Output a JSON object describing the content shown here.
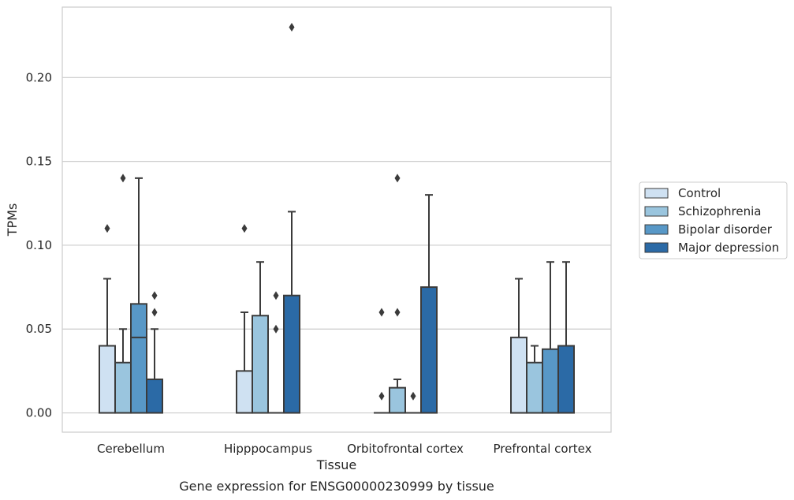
{
  "chart_data": {
    "type": "boxplot",
    "title": "Gene expression for ENSG00000230999 by tissue",
    "xlabel": "Tissue",
    "ylabel": "TPMs",
    "ylim": [
      -0.0115,
      0.242
    ],
    "yticks": [
      {
        "value": 0.0,
        "label": "0.00"
      },
      {
        "value": 0.05,
        "label": "0.05"
      },
      {
        "value": 0.1,
        "label": "0.10"
      },
      {
        "value": 0.15,
        "label": "0.15"
      },
      {
        "value": 0.2,
        "label": "0.20"
      }
    ],
    "grid": "horizontal",
    "legend_position": "right",
    "categories": [
      "Cerebellum",
      "Hipppocampus",
      "Orbitofrontal cortex",
      "Prefrontal cortex"
    ],
    "series": [
      {
        "name": "Control",
        "color": "#cfe1f2",
        "boxes": [
          {
            "q1": 0.0,
            "median": 0.0,
            "q3": 0.04,
            "whisker_low": 0.0,
            "whisker_high": 0.08,
            "outliers": [
              0.11
            ]
          },
          {
            "q1": 0.0,
            "median": 0.0,
            "q3": 0.025,
            "whisker_low": 0.0,
            "whisker_high": 0.06,
            "outliers": [
              0.11
            ]
          },
          {
            "q1": 0.0,
            "median": 0.0,
            "q3": 0.0,
            "whisker_low": 0.0,
            "whisker_high": 0.0,
            "outliers": [
              0.01,
              0.06
            ]
          },
          {
            "q1": 0.0,
            "median": 0.0,
            "q3": 0.045,
            "whisker_low": 0.0,
            "whisker_high": 0.08,
            "outliers": []
          }
        ]
      },
      {
        "name": "Schizophrenia",
        "color": "#9ac5de",
        "boxes": [
          {
            "q1": 0.0,
            "median": 0.0,
            "q3": 0.03,
            "whisker_low": 0.0,
            "whisker_high": 0.05,
            "outliers": [
              0.14
            ]
          },
          {
            "q1": 0.0,
            "median": 0.0,
            "q3": 0.058,
            "whisker_low": 0.0,
            "whisker_high": 0.09,
            "outliers": []
          },
          {
            "q1": 0.0,
            "median": 0.0,
            "q3": 0.015,
            "whisker_low": 0.0,
            "whisker_high": 0.02,
            "outliers": [
              0.06,
              0.14
            ]
          },
          {
            "q1": 0.0,
            "median": 0.0,
            "q3": 0.03,
            "whisker_low": 0.0,
            "whisker_high": 0.04,
            "outliers": []
          }
        ]
      },
      {
        "name": "Bipolar disorder",
        "color": "#5898c7",
        "boxes": [
          {
            "q1": 0.0,
            "median": 0.045,
            "q3": 0.065,
            "whisker_low": 0.0,
            "whisker_high": 0.14,
            "outliers": []
          },
          {
            "q1": 0.0,
            "median": 0.0,
            "q3": 0.0,
            "whisker_low": 0.0,
            "whisker_high": 0.0,
            "outliers": [
              0.05,
              0.07
            ]
          },
          {
            "q1": 0.0,
            "median": 0.0,
            "q3": 0.0,
            "whisker_low": 0.0,
            "whisker_high": 0.0,
            "outliers": [
              0.01
            ]
          },
          {
            "q1": 0.0,
            "median": 0.0,
            "q3": 0.038,
            "whisker_low": 0.0,
            "whisker_high": 0.09,
            "outliers": []
          }
        ]
      },
      {
        "name": "Major depression",
        "color": "#2b6aa6",
        "boxes": [
          {
            "q1": 0.0,
            "median": 0.0,
            "q3": 0.02,
            "whisker_low": 0.0,
            "whisker_high": 0.05,
            "outliers": [
              0.06,
              0.07
            ]
          },
          {
            "q1": 0.0,
            "median": 0.0,
            "q3": 0.07,
            "whisker_low": 0.0,
            "whisker_high": 0.12,
            "outliers": [
              0.23
            ]
          },
          {
            "q1": 0.0,
            "median": 0.0,
            "q3": 0.075,
            "whisker_low": 0.0,
            "whisker_high": 0.13,
            "outliers": []
          },
          {
            "q1": 0.0,
            "median": 0.0,
            "q3": 0.04,
            "whisker_low": 0.0,
            "whisker_high": 0.09,
            "outliers": []
          }
        ]
      }
    ]
  }
}
